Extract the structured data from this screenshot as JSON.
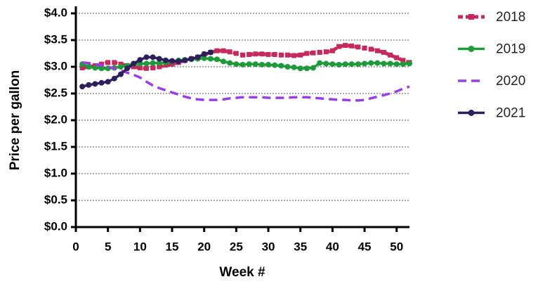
{
  "chart_data": {
    "type": "line",
    "x_label": "Week #",
    "y_label": "Price per gallon",
    "x": [
      1,
      2,
      3,
      4,
      5,
      6,
      7,
      8,
      9,
      10,
      11,
      12,
      13,
      14,
      15,
      16,
      17,
      18,
      19,
      20,
      21,
      22,
      23,
      24,
      25,
      26,
      27,
      28,
      29,
      30,
      31,
      32,
      33,
      34,
      35,
      36,
      37,
      38,
      39,
      40,
      41,
      42,
      43,
      44,
      45,
      46,
      47,
      48,
      49,
      50,
      51,
      52
    ],
    "xlim": [
      0,
      52
    ],
    "xticks": [
      0,
      5,
      10,
      15,
      20,
      25,
      30,
      35,
      40,
      45,
      50
    ],
    "ylim": [
      0,
      4
    ],
    "yticks": [
      {
        "value": 0,
        "label": "$0.0"
      },
      {
        "value": 0.5,
        "label": "$0.5"
      },
      {
        "value": 1,
        "label": "$1.0"
      },
      {
        "value": 1.5,
        "label": "$1.5"
      },
      {
        "value": 2,
        "label": "$2.0"
      },
      {
        "value": 2.5,
        "label": "$2.5"
      },
      {
        "value": 3,
        "label": "$3.0"
      },
      {
        "value": 3.5,
        "label": "$3.5"
      },
      {
        "value": 4,
        "label": "$4.0"
      }
    ],
    "grid": true,
    "legend": "right",
    "series": [
      {
        "name": "2018",
        "color": "#c42a5c",
        "marker": "square",
        "dashed": true,
        "values": [
          2.98,
          3.0,
          3.02,
          3.05,
          3.08,
          3.08,
          3.05,
          3.02,
          3.0,
          2.98,
          2.97,
          2.98,
          3.0,
          3.03,
          3.05,
          3.08,
          3.12,
          3.15,
          3.18,
          3.22,
          3.27,
          3.3,
          3.3,
          3.28,
          3.25,
          3.22,
          3.23,
          3.24,
          3.24,
          3.23,
          3.23,
          3.22,
          3.22,
          3.21,
          3.22,
          3.25,
          3.26,
          3.27,
          3.28,
          3.3,
          3.38,
          3.4,
          3.39,
          3.37,
          3.35,
          3.33,
          3.3,
          3.27,
          3.22,
          3.17,
          3.12,
          3.08
        ]
      },
      {
        "name": "2019",
        "color": "#1f9a3b",
        "marker": "circle",
        "dashed": false,
        "values": [
          3.05,
          3.0,
          2.98,
          2.97,
          2.97,
          2.98,
          3.0,
          3.02,
          3.05,
          3.06,
          3.06,
          3.07,
          3.07,
          3.08,
          3.1,
          3.12,
          3.13,
          3.14,
          3.15,
          3.16,
          3.15,
          3.14,
          3.1,
          3.07,
          3.05,
          3.04,
          3.05,
          3.05,
          3.04,
          3.04,
          3.03,
          3.02,
          3.0,
          2.99,
          2.97,
          2.97,
          2.98,
          3.07,
          3.06,
          3.05,
          3.04,
          3.05,
          3.05,
          3.05,
          3.06,
          3.07,
          3.07,
          3.06,
          3.06,
          3.05,
          3.05,
          3.06
        ]
      },
      {
        "name": "2020",
        "color": "#9b3de6",
        "marker": "none",
        "dashed": true,
        "values": [
          3.08,
          3.07,
          3.05,
          3.03,
          3.0,
          2.97,
          2.93,
          2.89,
          2.85,
          2.8,
          2.72,
          2.65,
          2.6,
          2.56,
          2.52,
          2.48,
          2.44,
          2.41,
          2.39,
          2.38,
          2.38,
          2.38,
          2.39,
          2.41,
          2.42,
          2.43,
          2.43,
          2.43,
          2.43,
          2.42,
          2.42,
          2.42,
          2.42,
          2.43,
          2.43,
          2.43,
          2.42,
          2.41,
          2.4,
          2.39,
          2.38,
          2.38,
          2.37,
          2.37,
          2.38,
          2.41,
          2.44,
          2.47,
          2.5,
          2.54,
          2.59,
          2.63
        ]
      },
      {
        "name": "2021",
        "color": "#2b1f5c",
        "marker": "circle",
        "dashed": false,
        "values": [
          2.63,
          2.66,
          2.68,
          2.7,
          2.72,
          2.78,
          2.86,
          2.97,
          3.06,
          3.13,
          3.18,
          3.18,
          3.15,
          3.12,
          3.11,
          3.1,
          3.12,
          3.15,
          3.18,
          3.24,
          3.27,
          null,
          null,
          null,
          null,
          null,
          null,
          null,
          null,
          null,
          null,
          null,
          null,
          null,
          null,
          null,
          null,
          null,
          null,
          null,
          null,
          null,
          null,
          null,
          null,
          null,
          null,
          null,
          null,
          null,
          null,
          null
        ]
      }
    ]
  }
}
